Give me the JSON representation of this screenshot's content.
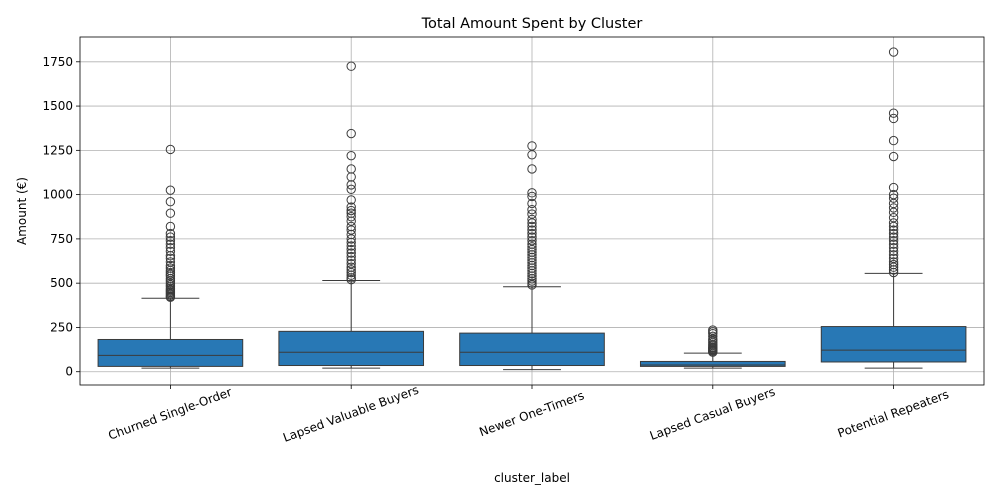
{
  "chart_data": {
    "type": "box",
    "title": "Total Amount Spent by Cluster",
    "xlabel": "cluster_label",
    "ylabel": "Amount (€)",
    "ylim": [
      -75,
      1890
    ],
    "yticks": [
      0,
      250,
      500,
      750,
      1000,
      1250,
      1500,
      1750
    ],
    "grid": true,
    "box_color": "#2878b5",
    "categories": [
      "Churned Single-Order",
      "Lapsed Valuable Buyers",
      "Newer One-Timers",
      "Lapsed Casual Buyers",
      "Potential Repeaters"
    ],
    "boxes": [
      {
        "whisker_low": 20,
        "q1": 30,
        "median": 92,
        "q3": 182,
        "whisker_high": 415,
        "outliers": [
          420,
          425,
          432,
          440,
          448,
          455,
          462,
          470,
          480,
          490,
          500,
          512,
          525,
          540,
          550,
          560,
          572,
          585,
          600,
          620,
          640,
          655,
          680,
          700,
          720,
          740,
          760,
          780,
          820,
          895,
          960,
          1025,
          1255
        ]
      },
      {
        "whisker_low": 20,
        "q1": 35,
        "median": 110,
        "q3": 228,
        "whisker_high": 515,
        "outliers": [
          520,
          530,
          545,
          560,
          575,
          590,
          610,
          630,
          650,
          670,
          690,
          710,
          730,
          750,
          775,
          800,
          820,
          850,
          875,
          895,
          910,
          930,
          970,
          1030,
          1055,
          1100,
          1145,
          1220,
          1345,
          1725
        ]
      },
      {
        "whisker_low": 12,
        "q1": 35,
        "median": 110,
        "q3": 218,
        "whisker_high": 480,
        "outliers": [
          490,
          500,
          512,
          525,
          540,
          555,
          570,
          585,
          600,
          615,
          630,
          645,
          660,
          675,
          690,
          705,
          720,
          740,
          760,
          780,
          800,
          820,
          840,
          860,
          890,
          915,
          950,
          990,
          1010,
          1145,
          1225,
          1275
        ]
      },
      {
        "whisker_low": 20,
        "q1": 30,
        "median": 38,
        "q3": 58,
        "whisker_high": 105,
        "outliers": [
          110,
          115,
          120,
          125,
          130,
          135,
          140,
          148,
          155,
          165,
          175,
          185,
          200,
          215,
          225,
          235
        ]
      },
      {
        "whisker_low": 20,
        "q1": 55,
        "median": 122,
        "q3": 255,
        "whisker_high": 555,
        "outliers": [
          560,
          575,
          590,
          605,
          620,
          640,
          660,
          680,
          700,
          720,
          740,
          760,
          780,
          800,
          820,
          840,
          870,
          900,
          925,
          950,
          980,
          1000,
          1040,
          1215,
          1305,
          1430,
          1460,
          1805
        ]
      }
    ]
  }
}
